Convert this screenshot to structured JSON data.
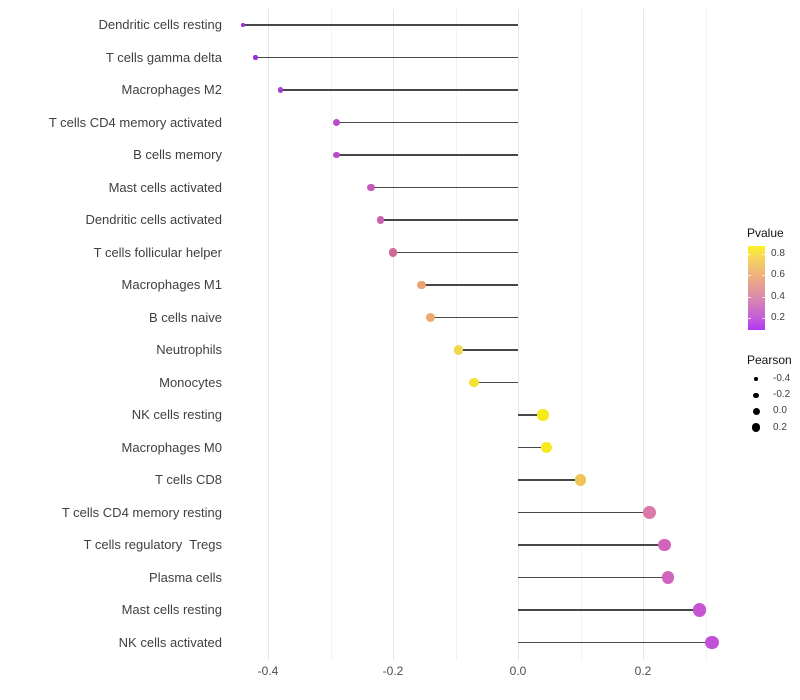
{
  "chart_data": {
    "type": "lollipop",
    "title": "",
    "xlabel": "",
    "ylabel": "",
    "description": "Horizontal lollipop chart of Pearson correlation per immune cell type; dot color encodes P-value (purple low to yellow high), dot size encodes Pearson value.",
    "x_axis": {
      "ticks": [
        "-0.4",
        "-0.2",
        "0.0",
        "0.2"
      ],
      "tick_values": [
        -0.4,
        -0.2,
        0.0,
        0.2
      ],
      "minor_values": [
        -0.3,
        -0.1,
        0.1,
        0.3
      ],
      "range": [
        -0.475,
        0.345
      ]
    },
    "rows": [
      {
        "label": "Dendritic cells resting",
        "pearson": -0.44,
        "pvalue_approx": 0.05,
        "color": "#9B2DE0"
      },
      {
        "label": "T cells gamma delta",
        "pearson": -0.42,
        "pvalue_approx": 0.06,
        "color": "#9D30DD"
      },
      {
        "label": "Macrophages M2",
        "pearson": -0.38,
        "pvalue_approx": 0.1,
        "color": "#A53CD6"
      },
      {
        "label": "T cells CD4 memory activated",
        "pearson": -0.29,
        "pvalue_approx": 0.18,
        "color": "#B64DC7"
      },
      {
        "label": "B cells memory",
        "pearson": -0.29,
        "pvalue_approx": 0.18,
        "color": "#B64DC7"
      },
      {
        "label": "Mast cells activated",
        "pearson": -0.235,
        "pvalue_approx": 0.23,
        "color": "#C25ABB"
      },
      {
        "label": "Dendritic cells activated",
        "pearson": -0.22,
        "pvalue_approx": 0.26,
        "color": "#C961AC"
      },
      {
        "label": "T cells follicular helper",
        "pearson": -0.2,
        "pvalue_approx": 0.3,
        "color": "#CE6897"
      },
      {
        "label": "Macrophages M1",
        "pearson": -0.155,
        "pvalue_approx": 0.55,
        "color": "#EBA175"
      },
      {
        "label": "B cells naive",
        "pearson": -0.14,
        "pvalue_approx": 0.58,
        "color": "#EDAA6E"
      },
      {
        "label": "Neutrophils",
        "pearson": -0.095,
        "pvalue_approx": 0.72,
        "color": "#F0D84C"
      },
      {
        "label": "Monocytes",
        "pearson": -0.07,
        "pvalue_approx": 0.76,
        "color": "#F3E135"
      },
      {
        "label": "NK cells resting",
        "pearson": 0.04,
        "pvalue_approx": 0.82,
        "color": "#F6EA1D"
      },
      {
        "label": "Macrophages M0",
        "pearson": 0.045,
        "pvalue_approx": 0.82,
        "color": "#F6EA1D"
      },
      {
        "label": "T cells CD8",
        "pearson": 0.1,
        "pvalue_approx": 0.65,
        "color": "#EFC55A"
      },
      {
        "label": "T cells CD4 memory resting",
        "pearson": 0.21,
        "pvalue_approx": 0.42,
        "color": "#DB79A9"
      },
      {
        "label": "T cells regulatory  Tregs",
        "pearson": 0.235,
        "pvalue_approx": 0.3,
        "color": "#D165BD"
      },
      {
        "label": "Plasma cells",
        "pearson": 0.24,
        "pvalue_approx": 0.3,
        "color": "#D165BD"
      },
      {
        "label": "Mast cells resting",
        "pearson": 0.29,
        "pvalue_approx": 0.21,
        "color": "#C754D3"
      },
      {
        "label": "NK cells activated",
        "pearson": 0.31,
        "pvalue_approx": 0.19,
        "color": "#C351D8"
      }
    ],
    "legends": {
      "pvalue": {
        "title": "Pvalue",
        "ticks": [
          "0.8",
          "0.6",
          "0.4",
          "0.2"
        ],
        "tick_values": [
          0.8,
          0.6,
          0.4,
          0.2
        ],
        "bar_range": [
          0.09,
          0.87
        ],
        "gradient_stops": [
          [
            "#B136F2",
            0
          ],
          [
            "#C45CDB",
            14
          ],
          [
            "#DD8BAB",
            40
          ],
          [
            "#EDAF80",
            64
          ],
          [
            "#F6D65C",
            86
          ],
          [
            "#FBF228",
            100
          ]
        ]
      },
      "pearson": {
        "title": "Pearson",
        "items": [
          {
            "label": "-0.4",
            "value": -0.4
          },
          {
            "label": "-0.2",
            "value": -0.2
          },
          {
            "label": "0.0",
            "value": 0.0
          },
          {
            "label": "0.2",
            "value": 0.2
          }
        ]
      }
    },
    "colors": {
      "segment": "#474747",
      "gridline_major": "#e6e6e6",
      "gridline_minor": "#f3f3f3",
      "axis_text": "#4d4d4d",
      "background": "#ffffff"
    }
  }
}
